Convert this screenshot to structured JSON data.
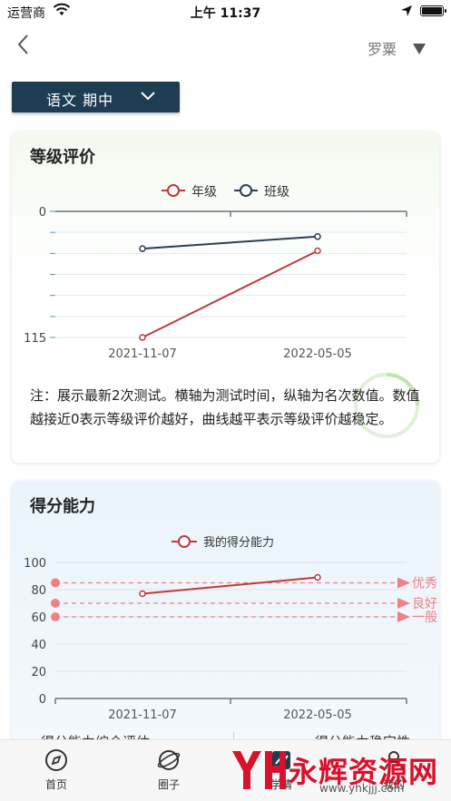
{
  "status_bar": {
    "carrier": "运营商",
    "time": "上午 11:37"
  },
  "nav": {
    "user_name": "罗粟"
  },
  "subject_selector": {
    "label": "语文 期中"
  },
  "grade_card": {
    "title": "等级评价",
    "note": "注：展示最新2次测试。横轴为测试时间，纵轴为名次数值。数值越接近0表示等级评价越好，曲线越平表示等级评价越稳定。",
    "chart_data": {
      "type": "line",
      "categories": [
        "2021-11-07",
        "2022-05-05"
      ],
      "y_ticks": [
        "0",
        "115"
      ],
      "ylim": [
        0,
        115
      ],
      "y_inverted": true,
      "legend_position": "top",
      "series": [
        {
          "name": "年级",
          "values": [
            115,
            36
          ],
          "color": "#c0393b"
        },
        {
          "name": "班级",
          "values": [
            34,
            23
          ],
          "color": "#2d3e55"
        }
      ]
    }
  },
  "score_card": {
    "title": "得分能力",
    "chart_data": {
      "type": "line",
      "categories": [
        "2021-11-07",
        "2022-05-05"
      ],
      "y_ticks": [
        "0",
        "20",
        "40",
        "60",
        "80",
        "100"
      ],
      "ylim": [
        0,
        100
      ],
      "legend_position": "top",
      "series": [
        {
          "name": "我的得分能力",
          "values": [
            77,
            89
          ],
          "color": "#c0393b"
        }
      ],
      "reference_lines": [
        {
          "label": "优秀",
          "value": 85
        },
        {
          "label": "良好",
          "value": 70
        },
        {
          "label": "一般",
          "value": 60
        }
      ],
      "reference_color": "#f07f86"
    }
  },
  "bottom_labels": {
    "left": "得分能力综合评估",
    "right": "得分能力稳定性"
  },
  "tabbar": {
    "items": [
      {
        "label": "首页",
        "icon": "compass-icon"
      },
      {
        "label": "圈子",
        "icon": "planet-icon"
      },
      {
        "label": "学情",
        "icon": "chart-icon"
      },
      {
        "label": "我的",
        "icon": "user-icon"
      }
    ]
  },
  "watermark": {
    "text": "永辉资源网",
    "url": "www.yhkjjj.com"
  }
}
